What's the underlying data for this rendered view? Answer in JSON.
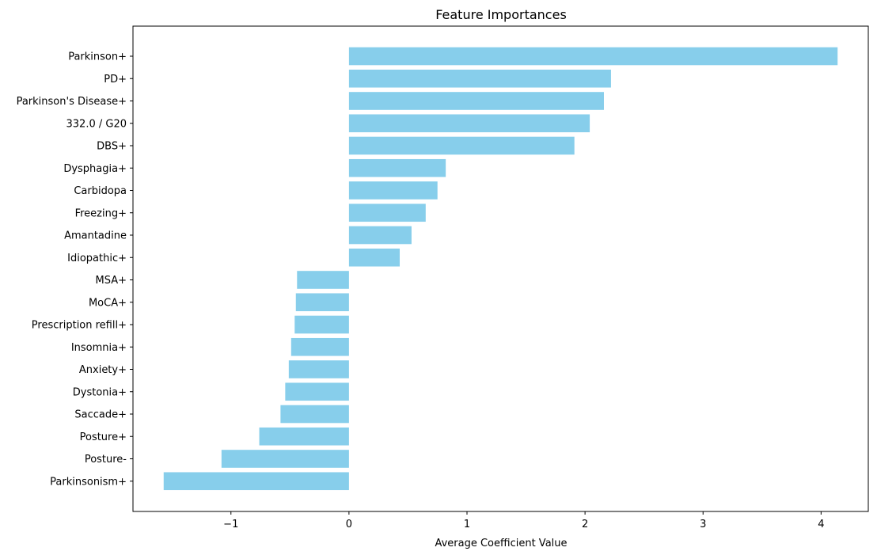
{
  "chart_data": {
    "type": "bar",
    "orientation": "horizontal",
    "title": "Feature Importances",
    "xlabel": "Average Coefficient Value",
    "ylabel": "",
    "xlim": [
      -1.83,
      4.4
    ],
    "xticks": [
      -1,
      0,
      1,
      2,
      3,
      4
    ],
    "xtick_labels": [
      "−1",
      "0",
      "1",
      "2",
      "3",
      "4"
    ],
    "grid": false,
    "legend": "none",
    "bar_color": "#87CEEB",
    "categories": [
      "Parkinson+",
      "PD+",
      "Parkinson's Disease+",
      "332.0 / G20",
      "DBS+",
      "Dysphagia+",
      "Carbidopa",
      "Freezing+",
      "Amantadine",
      "Idiopathic+",
      "MSA+",
      "MoCA+",
      "Prescription refill+",
      "Insomnia+",
      "Anxiety+",
      "Dystonia+",
      "Saccade+",
      "Posture+",
      "Posture-",
      "Parkinsonism+"
    ],
    "values": [
      4.14,
      2.22,
      2.16,
      2.04,
      1.91,
      0.82,
      0.75,
      0.65,
      0.53,
      0.43,
      -0.44,
      -0.45,
      -0.46,
      -0.49,
      -0.51,
      -0.54,
      -0.58,
      -0.76,
      -1.08,
      -1.57
    ]
  }
}
